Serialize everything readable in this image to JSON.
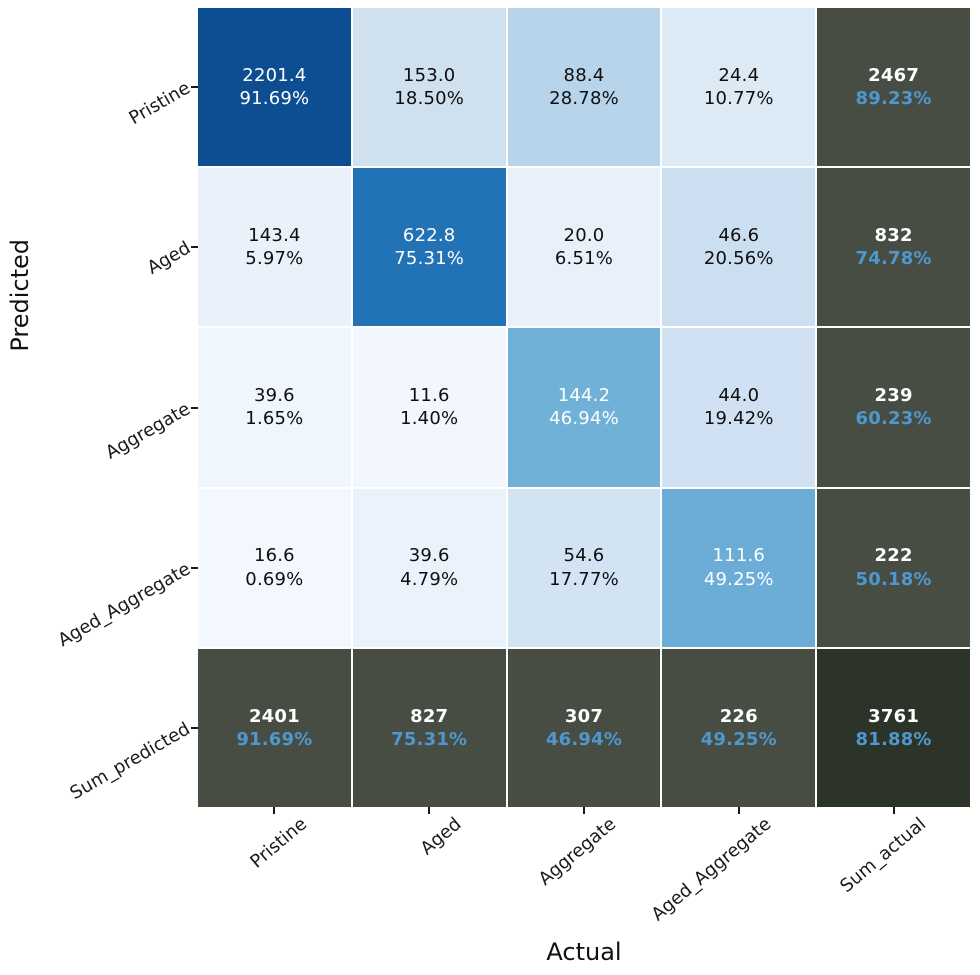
{
  "chart_data": {
    "type": "heatmap",
    "title": "",
    "xlabel": "Actual",
    "ylabel": "Predicted",
    "x_labels": [
      "Pristine",
      "Aged",
      "Aggregate",
      "Aged_Aggregate",
      "Sum_actual"
    ],
    "y_labels": [
      "Pristine",
      "Aged",
      "Aggregate",
      "Aged_Aggregate",
      "Sum_predicted"
    ],
    "colormap": "Blues",
    "colors": {
      "sum_cell_bg": "#474d43",
      "corner_cell_bg": "#2c3329",
      "sum_pct_blue": "#4f97cf",
      "grid_line": "#ffffff",
      "text_dark": "#0f0f0f",
      "text_light": "#ffffff"
    },
    "cells": [
      [
        {
          "v": "2201.4",
          "p": "91.69%",
          "bg": "#0d4e92",
          "fg": "#ffffff"
        },
        {
          "v": "153.0",
          "p": "18.50%",
          "bg": "#cfe0ef",
          "fg": "#0f0f0f"
        },
        {
          "v": "88.4",
          "p": "28.78%",
          "bg": "#b7d4ea",
          "fg": "#0f0f0f"
        },
        {
          "v": "24.4",
          "p": "10.77%",
          "bg": "#dceaf6",
          "fg": "#0f0f0f"
        },
        {
          "v": "2467",
          "p": "89.23%",
          "bg": "#474d43",
          "fg": "#ffffff",
          "pfg": "#4f97cf",
          "sum": true
        }
      ],
      [
        {
          "v": "143.4",
          "p": "5.97%",
          "bg": "#e9f1fa",
          "fg": "#0f0f0f"
        },
        {
          "v": "622.8",
          "p": "75.31%",
          "bg": "#2272b6",
          "fg": "#ffffff"
        },
        {
          "v": "20.0",
          "p": "6.51%",
          "bg": "#e8f1fa",
          "fg": "#0f0f0f"
        },
        {
          "v": "46.6",
          "p": "20.56%",
          "bg": "#ccdff0",
          "fg": "#0f0f0f"
        },
        {
          "v": "832",
          "p": "74.78%",
          "bg": "#474d43",
          "fg": "#ffffff",
          "pfg": "#4f97cf",
          "sum": true
        }
      ],
      [
        {
          "v": "39.6",
          "p": "1.65%",
          "bg": "#f0f6fd",
          "fg": "#0f0f0f"
        },
        {
          "v": "11.6",
          "p": "1.40%",
          "bg": "#f1f7fd",
          "fg": "#0f0f0f"
        },
        {
          "v": "144.2",
          "p": "46.94%",
          "bg": "#6fb1d7",
          "fg": "#ffffff"
        },
        {
          "v": "44.0",
          "p": "19.42%",
          "bg": "#cfe1f2",
          "fg": "#0f0f0f"
        },
        {
          "v": "239",
          "p": "60.23%",
          "bg": "#474d43",
          "fg": "#ffffff",
          "pfg": "#4f97cf",
          "sum": true
        }
      ],
      [
        {
          "v": "16.6",
          "p": "0.69%",
          "bg": "#f3f8fe",
          "fg": "#0f0f0f"
        },
        {
          "v": "39.6",
          "p": "4.79%",
          "bg": "#eaf3fb",
          "fg": "#0f0f0f"
        },
        {
          "v": "54.6",
          "p": "17.77%",
          "bg": "#d2e3f3",
          "fg": "#0f0f0f"
        },
        {
          "v": "111.6",
          "p": "49.25%",
          "bg": "#6badd7",
          "fg": "#ffffff"
        },
        {
          "v": "222",
          "p": "50.18%",
          "bg": "#474d43",
          "fg": "#ffffff",
          "pfg": "#4f97cf",
          "sum": true
        }
      ],
      [
        {
          "v": "2401",
          "p": "91.69%",
          "bg": "#474d43",
          "fg": "#ffffff",
          "pfg": "#4f97cf",
          "sum": true
        },
        {
          "v": "827",
          "p": "75.31%",
          "bg": "#474d43",
          "fg": "#ffffff",
          "pfg": "#4f97cf",
          "sum": true
        },
        {
          "v": "307",
          "p": "46.94%",
          "bg": "#474d43",
          "fg": "#ffffff",
          "pfg": "#4f97cf",
          "sum": true
        },
        {
          "v": "226",
          "p": "49.25%",
          "bg": "#474d43",
          "fg": "#ffffff",
          "pfg": "#4f97cf",
          "sum": true
        },
        {
          "v": "3761",
          "p": "81.88%",
          "bg": "#2c3329",
          "fg": "#ffffff",
          "pfg": "#4f97cf",
          "sum": true
        }
      ]
    ]
  }
}
